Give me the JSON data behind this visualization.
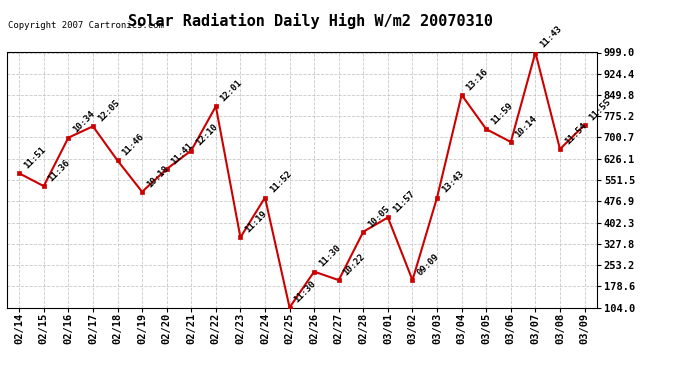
{
  "title": "Solar Radiation Daily High W/m2 20070310",
  "copyright": "Copyright 2007 Cartronics.com",
  "dates": [
    "02/14",
    "02/15",
    "02/16",
    "02/17",
    "02/18",
    "02/19",
    "02/20",
    "02/21",
    "02/22",
    "02/23",
    "02/24",
    "02/25",
    "02/26",
    "02/27",
    "02/28",
    "03/01",
    "03/02",
    "03/03",
    "03/04",
    "03/05",
    "03/06",
    "03/07",
    "03/08",
    "03/09"
  ],
  "values": [
    575,
    530,
    700,
    740,
    620,
    510,
    590,
    655,
    810,
    350,
    490,
    104,
    230,
    200,
    370,
    420,
    200,
    490,
    850,
    730,
    685,
    999,
    660,
    745
  ],
  "labels": [
    "11:51",
    "11:36",
    "10:34",
    "12:05",
    "11:46",
    "10:18",
    "11:41",
    "12:10",
    "12:01",
    "11:19",
    "11:52",
    "11:30",
    "11:30",
    "10:22",
    "10:05",
    "11:57",
    "09:09",
    "13:43",
    "13:16",
    "11:59",
    "10:14",
    "11:43",
    "11:54",
    "11:55"
  ],
  "ylim_min": 104.0,
  "ylim_max": 999.0,
  "yticks": [
    104.0,
    178.6,
    253.2,
    327.8,
    402.3,
    476.9,
    551.5,
    626.1,
    700.7,
    775.2,
    849.8,
    924.4,
    999.0
  ],
  "line_color": "#cc0000",
  "marker_color": "#cc0000",
  "bg_color": "#ffffff",
  "grid_color": "#bbbbbb",
  "title_fontsize": 11,
  "label_fontsize": 6.5,
  "tick_fontsize": 7.5,
  "copyright_fontsize": 6.5
}
